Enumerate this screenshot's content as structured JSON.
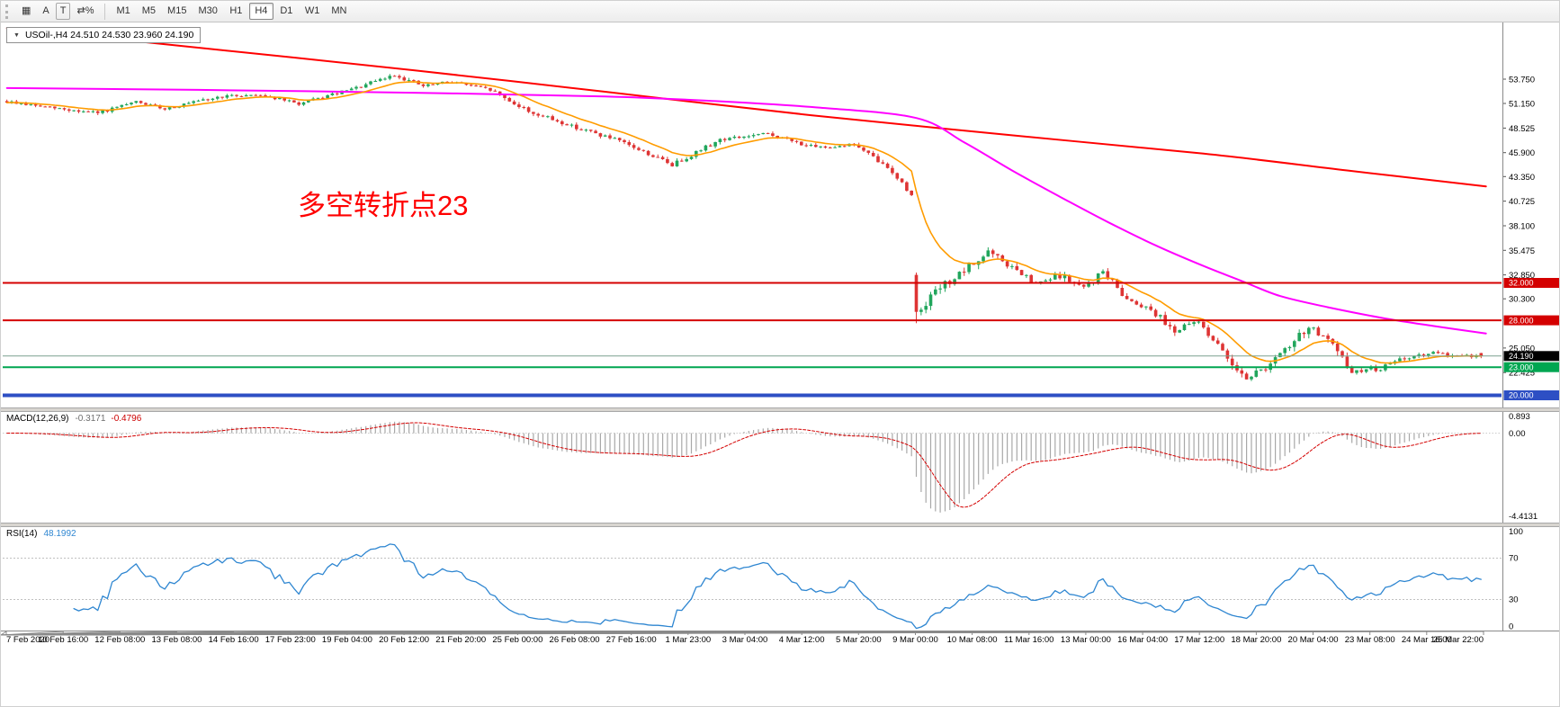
{
  "toolbar": {
    "tools": [
      {
        "name": "chart-windows",
        "glyph": "▦"
      },
      {
        "name": "cursor",
        "glyph": "A"
      },
      {
        "name": "text-label",
        "glyph": "T"
      },
      {
        "name": "scale",
        "glyph": "⇄%"
      }
    ],
    "timeframes": [
      "M1",
      "M5",
      "M15",
      "M30",
      "H1",
      "H4",
      "D1",
      "W1",
      "MN"
    ],
    "active_timeframe": "H4"
  },
  "chart_data": {
    "type": "candlestick",
    "symbol": "USOil-",
    "timeframe": "H4",
    "title": "USOil-,H4 24.510 24.530 23.960 24.190",
    "collapse_arrow": "▼",
    "ohlc": {
      "open": 24.51,
      "high": 24.53,
      "low": 23.96,
      "close": 24.19
    },
    "annotation": {
      "text": "多空转折点23",
      "color": "#ff0000"
    },
    "colors": {
      "up": "#21a65c",
      "down": "#de3434",
      "ma_fast": "#ff9c00",
      "ma_mid": "#ff00ff",
      "ma_slow": "#ff0000",
      "macd_hist": "#a8a8a8",
      "macd_signal": "#d40000",
      "rsi_line": "#2e86d1"
    },
    "price_axis": {
      "ticks": [
        "53.750",
        "51.150",
        "48.525",
        "45.900",
        "43.350",
        "40.725",
        "38.100",
        "35.475",
        "32.850",
        "30.300",
        "25.050",
        "22.425"
      ],
      "view_high": 59.7,
      "view_low": 18.7
    },
    "levels": [
      {
        "price": 32.0,
        "label": "32.000",
        "color": "#d40000",
        "width": 2
      },
      {
        "price": 28.0,
        "label": "28.000",
        "color": "#d40000",
        "width": 2
      },
      {
        "price": 23.0,
        "label": "23.000",
        "color": "#00a651",
        "width": 2
      },
      {
        "price": 20.0,
        "label": "20.000",
        "color": "#2d4fc4",
        "width": 4
      }
    ],
    "current_price": {
      "value": 24.19,
      "label": "24.190",
      "line_color": "#7aa08f",
      "badge_bg": "#000000"
    },
    "last_candle": {
      "open": 24.51,
      "high": 24.53,
      "low": 23.96,
      "close": 24.19
    },
    "price_path_segments": [
      [
        10,
        51.4,
        50.7,
        0.35
      ],
      [
        10,
        50.7,
        50.1,
        0.4
      ],
      [
        8,
        50.1,
        51.3,
        0.35
      ],
      [
        6,
        51.3,
        50.6,
        0.3
      ],
      [
        12,
        50.6,
        51.9,
        0.35
      ],
      [
        8,
        51.9,
        52.1,
        0.3
      ],
      [
        8,
        52.1,
        51.1,
        0.35
      ],
      [
        12,
        51.1,
        52.8,
        0.35
      ],
      [
        8,
        52.8,
        54.2,
        0.4
      ],
      [
        6,
        54.2,
        53.0,
        0.45
      ],
      [
        6,
        53.0,
        53.5,
        0.35
      ],
      [
        8,
        53.5,
        52.6,
        0.3
      ],
      [
        8,
        52.6,
        50.3,
        0.5
      ],
      [
        8,
        50.3,
        48.9,
        0.45
      ],
      [
        10,
        48.9,
        47.3,
        0.45
      ],
      [
        6,
        47.3,
        46.0,
        0.4
      ],
      [
        6,
        46.0,
        44.6,
        0.5
      ],
      [
        10,
        44.6,
        47.3,
        0.5
      ],
      [
        10,
        47.3,
        47.9,
        0.4
      ],
      [
        10,
        47.9,
        46.4,
        0.4
      ],
      [
        8,
        46.4,
        46.8,
        0.35
      ],
      [
        8,
        46.8,
        43.9,
        0.5
      ],
      [
        4,
        43.9,
        41.3,
        0.5
      ],
      [
        "gap",
        32.85,
        33.1,
        27.7,
        28.9
      ],
      [
        5,
        28.9,
        31.5,
        0.9
      ],
      [
        5,
        31.5,
        33.2,
        0.8
      ],
      [
        5,
        33.2,
        35.3,
        0.9
      ],
      [
        5,
        35.3,
        33.6,
        0.8
      ],
      [
        5,
        33.6,
        31.8,
        0.7
      ],
      [
        5,
        31.8,
        32.8,
        0.7
      ],
      [
        5,
        32.8,
        31.4,
        0.7
      ],
      [
        4,
        31.4,
        33.2,
        0.8
      ],
      [
        5,
        33.2,
        30.3,
        0.7
      ],
      [
        5,
        30.3,
        29.2,
        0.6
      ],
      [
        5,
        29.2,
        26.9,
        0.7
      ],
      [
        5,
        26.9,
        27.9,
        0.6
      ],
      [
        5,
        27.9,
        24.6,
        0.7
      ],
      [
        5,
        24.6,
        21.9,
        1.0
      ],
      [
        4,
        21.9,
        23.0,
        0.8
      ],
      [
        5,
        23.0,
        25.2,
        0.8
      ],
      [
        4,
        25.2,
        27.4,
        0.9
      ],
      [
        4,
        27.4,
        25.8,
        0.8
      ],
      [
        5,
        25.8,
        22.5,
        1.0
      ],
      [
        6,
        22.5,
        22.9,
        0.6
      ],
      [
        5,
        22.9,
        24.0,
        0.5
      ],
      [
        6,
        24.0,
        24.45,
        0.45
      ],
      [
        6,
        24.45,
        24.2,
        0.4
      ],
      [
        4,
        24.2,
        24.19,
        0.35
      ]
    ],
    "moving_averages": {
      "fast_ema_period": 13,
      "mid_points": [
        [
          0,
          52.8
        ],
        [
          40,
          52.6
        ],
        [
          85,
          52.3
        ],
        [
          125,
          51.9
        ],
        [
          148,
          51.4
        ],
        [
          170,
          50.7
        ],
        [
          190,
          49.6
        ],
        [
          200,
          47.0
        ],
        [
          210,
          44.0
        ],
        [
          220,
          41.2
        ],
        [
          230,
          38.5
        ],
        [
          240,
          36.0
        ],
        [
          250,
          33.8
        ],
        [
          258,
          32.2
        ],
        [
          266,
          30.6
        ],
        [
          276,
          29.4
        ],
        [
          288,
          28.2
        ],
        [
          298,
          27.4
        ],
        [
          309,
          26.6
        ]
      ],
      "slow_points": [
        [
          0,
          59.2
        ],
        [
          42,
          57.0
        ],
        [
          85,
          54.7
        ],
        [
          125,
          52.4
        ],
        [
          168,
          49.9
        ],
        [
          209,
          47.8
        ],
        [
          250,
          45.8
        ],
        [
          280,
          44.0
        ],
        [
          309,
          42.3
        ]
      ]
    },
    "time_labels": [
      "7 Feb 2020",
      "10 Feb 16:00",
      "12 Feb 08:00",
      "13 Feb 08:00",
      "14 Feb 16:00",
      "17 Feb 23:00",
      "19 Feb 04:00",
      "20 Feb 12:00",
      "21 Feb 20:00",
      "25 Feb 00:00",
      "26 Feb 08:00",
      "27 Feb 16:00",
      "1 Mar 23:00",
      "3 Mar 04:00",
      "4 Mar 12:00",
      "5 Mar 20:00",
      "9 Mar 00:00",
      "10 Mar 08:00",
      "11 Mar 16:00",
      "13 Mar 00:00",
      "16 Mar 04:00",
      "17 Mar 12:00",
      "18 Mar 20:00",
      "20 Mar 04:00",
      "23 Mar 08:00",
      "24 Mar 16:00",
      "25 Mar 22:00"
    ],
    "macd": {
      "label": "MACD(12,26,9)",
      "main_value": "-0.3171",
      "signal_value": "-0.4796",
      "axis": [
        "0.893",
        "0.00",
        "-4.4131"
      ],
      "view_high": 1.13,
      "view_low": -4.77,
      "fast": 12,
      "slow": 26,
      "signal_period": 9
    },
    "rsi": {
      "label": "RSI(14)",
      "value": "48.1992",
      "period": 14,
      "axis": [
        "100",
        "70",
        "30",
        "0"
      ],
      "levels": [
        70,
        30
      ]
    }
  }
}
